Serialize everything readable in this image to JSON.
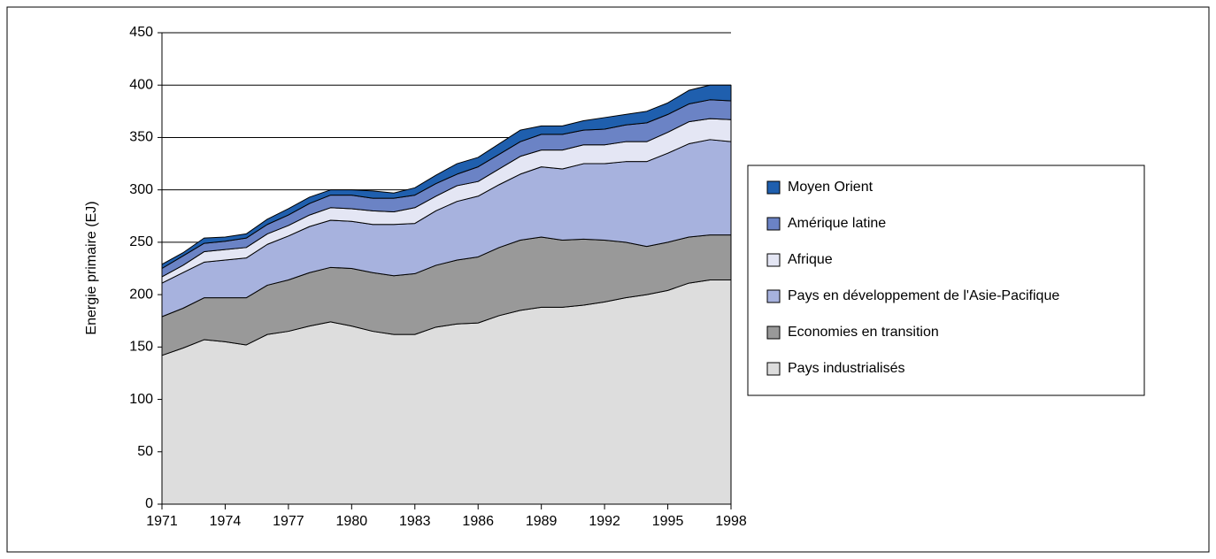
{
  "chart_data": {
    "type": "area",
    "stacked": true,
    "y_label": "Energie primaire (EJ)",
    "x": [
      1971,
      1972,
      1973,
      1974,
      1975,
      1976,
      1977,
      1978,
      1979,
      1980,
      1981,
      1982,
      1983,
      1984,
      1985,
      1986,
      1987,
      1988,
      1989,
      1990,
      1991,
      1992,
      1993,
      1994,
      1995,
      1996,
      1997,
      1998
    ],
    "xlim": [
      1971,
      1998
    ],
    "xticks": [
      1971,
      1974,
      1977,
      1980,
      1983,
      1986,
      1989,
      1992,
      1995,
      1998
    ],
    "ylim": [
      0,
      450
    ],
    "yticks": [
      0,
      50,
      100,
      150,
      200,
      250,
      300,
      350,
      400,
      450
    ],
    "grid": true,
    "legend": "right",
    "series": [
      {
        "name": "Pays industrialisés",
        "color": "#dddddd",
        "values": [
          142,
          149,
          157,
          155,
          152,
          162,
          165,
          170,
          174,
          170,
          165,
          162,
          162,
          169,
          172,
          173,
          180,
          185,
          188,
          188,
          190,
          193,
          197,
          200,
          204,
          211,
          214,
          214
        ]
      },
      {
        "name": "Economies en transition",
        "color": "#999999",
        "values": [
          37,
          38,
          40,
          42,
          45,
          47,
          49,
          51,
          52,
          55,
          56,
          56,
          58,
          59,
          61,
          63,
          65,
          67,
          67,
          64,
          63,
          59,
          53,
          46,
          46,
          44,
          43,
          43
        ]
      },
      {
        "name": "Pays en développement de l'Asie-Pacifique",
        "color": "#a7b2de",
        "values": [
          32,
          34,
          34,
          36,
          38,
          39,
          42,
          44,
          45,
          45,
          46,
          49,
          48,
          52,
          56,
          58,
          60,
          63,
          67,
          68,
          72,
          73,
          77,
          81,
          85,
          89,
          91,
          89
        ]
      },
      {
        "name": "Afrique",
        "color": "#e4e6f4",
        "values": [
          6,
          7,
          10,
          10,
          10,
          10,
          10,
          11,
          12,
          12,
          13,
          12,
          15,
          14,
          15,
          14,
          15,
          17,
          16,
          18,
          18,
          18,
          19,
          19,
          20,
          21,
          20,
          21
        ]
      },
      {
        "name": "Amérique latine",
        "color": "#6b83c5",
        "values": [
          8,
          9,
          8,
          8,
          9,
          9,
          10,
          11,
          12,
          13,
          12,
          13,
          12,
          12,
          11,
          14,
          14,
          14,
          15,
          15,
          14,
          15,
          16,
          18,
          17,
          17,
          18,
          18
        ]
      },
      {
        "name": "Moyen Orient",
        "color": "#1f5fae",
        "values": [
          4,
          3,
          5,
          4,
          4,
          5,
          6,
          6,
          5,
          5,
          7,
          5,
          7,
          8,
          10,
          9,
          10,
          11,
          8,
          8,
          9,
          11,
          10,
          11,
          11,
          13,
          14,
          15
        ]
      }
    ]
  }
}
